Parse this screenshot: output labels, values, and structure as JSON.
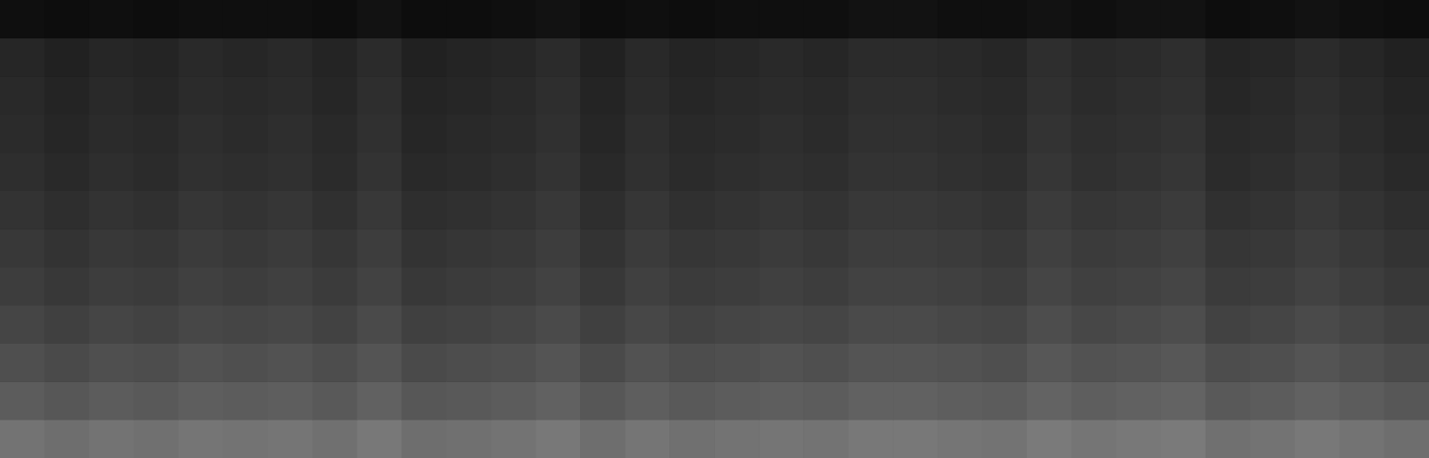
{
  "chart_data": {
    "type": "heatmap",
    "tick_labels": false,
    "zlim": [
      0,
      100
    ],
    "cells": [
      [
        6,
        5,
        6,
        5,
        6,
        6,
        6,
        5,
        7,
        5,
        5,
        6,
        7,
        5,
        6,
        5,
        6,
        6,
        6,
        7,
        7,
        6,
        6,
        7,
        6,
        7,
        7,
        5,
        6,
        7,
        6,
        5
      ],
      [
        15,
        13,
        15,
        14,
        16,
        15,
        16,
        14,
        17,
        13,
        14,
        15,
        17,
        13,
        16,
        14,
        15,
        16,
        15,
        17,
        17,
        16,
        15,
        18,
        16,
        17,
        18,
        14,
        15,
        17,
        15,
        13
      ],
      [
        16,
        14,
        16,
        15,
        17,
        16,
        17,
        15,
        18,
        14,
        15,
        16,
        18,
        14,
        17,
        15,
        16,
        17,
        16,
        18,
        18,
        17,
        16,
        19,
        17,
        18,
        19,
        15,
        16,
        18,
        16,
        14
      ],
      [
        17,
        15,
        17,
        16,
        18,
        17,
        18,
        16,
        19,
        15,
        16,
        17,
        19,
        15,
        18,
        16,
        17,
        18,
        17,
        19,
        19,
        18,
        17,
        20,
        18,
        19,
        20,
        16,
        17,
        19,
        17,
        15
      ],
      [
        18,
        16,
        18,
        17,
        19,
        18,
        19,
        17,
        20,
        16,
        17,
        18,
        20,
        16,
        19,
        17,
        18,
        19,
        18,
        20,
        20,
        19,
        18,
        21,
        19,
        20,
        21,
        17,
        18,
        20,
        18,
        16
      ],
      [
        20,
        18,
        20,
        19,
        21,
        20,
        21,
        19,
        22,
        18,
        19,
        20,
        22,
        18,
        21,
        19,
        20,
        21,
        20,
        22,
        22,
        21,
        20,
        23,
        21,
        22,
        23,
        19,
        20,
        22,
        20,
        18
      ],
      [
        22,
        20,
        22,
        21,
        23,
        22,
        23,
        21,
        24,
        20,
        21,
        22,
        24,
        20,
        23,
        21,
        22,
        23,
        22,
        24,
        24,
        23,
        22,
        25,
        23,
        24,
        25,
        21,
        22,
        24,
        22,
        20
      ],
      [
        24,
        22,
        24,
        23,
        25,
        24,
        25,
        23,
        26,
        22,
        23,
        24,
        26,
        22,
        25,
        23,
        24,
        25,
        24,
        26,
        26,
        25,
        24,
        27,
        25,
        26,
        27,
        23,
        24,
        26,
        24,
        22
      ],
      [
        27,
        25,
        27,
        26,
        28,
        27,
        28,
        26,
        29,
        25,
        26,
        27,
        29,
        25,
        28,
        26,
        27,
        28,
        27,
        29,
        29,
        28,
        27,
        30,
        28,
        29,
        30,
        26,
        27,
        29,
        27,
        25
      ],
      [
        31,
        29,
        31,
        30,
        32,
        31,
        32,
        30,
        33,
        29,
        30,
        31,
        33,
        29,
        32,
        30,
        31,
        32,
        31,
        33,
        33,
        32,
        31,
        34,
        32,
        33,
        34,
        30,
        31,
        33,
        31,
        29
      ],
      [
        36,
        34,
        36,
        35,
        37,
        36,
        37,
        35,
        38,
        34,
        35,
        36,
        38,
        34,
        37,
        35,
        36,
        37,
        36,
        38,
        38,
        37,
        36,
        39,
        37,
        38,
        39,
        35,
        36,
        38,
        36,
        34
      ],
      [
        45,
        43,
        45,
        44,
        46,
        45,
        46,
        44,
        47,
        43,
        44,
        45,
        47,
        43,
        46,
        44,
        45,
        46,
        45,
        47,
        47,
        46,
        45,
        48,
        46,
        47,
        48,
        44,
        45,
        47,
        45,
        43
      ]
    ]
  }
}
